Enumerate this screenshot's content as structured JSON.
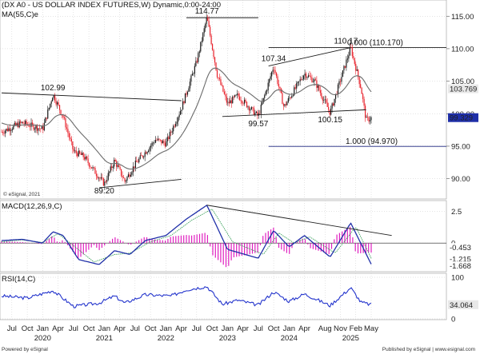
{
  "header": {
    "price_title": "(DX A0 - US DOLLAR INDEX FUTURES,W) Dynamic,0:00-24:00",
    "ma_label": "MA(55,C)e",
    "macd_label": "MACD(12,26,9,C)",
    "rsi_label": "RSI(14,C)",
    "copyright": "© eSignal, 2021",
    "footer_left": "Powered by eSignal",
    "footer_right": "Published by eSignal | www.esignal.com"
  },
  "colors": {
    "bull": "#1a1a1a",
    "bear": "#e8202a",
    "ma": "#6b6b6b",
    "macd_line": "#1f2fa8",
    "signal_line": "#3aa05a",
    "histogram": "#e020c0",
    "rsi_line": "#2233cc",
    "guide": "#1a237e",
    "grid": "#c8c8c8"
  },
  "chart_data": [
    {
      "type": "candlestick",
      "title": "(DX A0 - US DOLLAR INDEX FUTURES,W) Dynamic,0:00-24:00",
      "ylim": [
        87,
        117
      ],
      "y_ticks": [
        "90.00",
        "95.00",
        "100.00",
        "105.00",
        "110.00",
        "115.00"
      ],
      "x_ticks": [
        "Jul",
        "Oct",
        "Jan",
        "Apr",
        "Jul",
        "Oct",
        "Jan",
        "Apr",
        "Jul",
        "Oct",
        "Jan",
        "Apr",
        "Jul",
        "Oct",
        "Jan",
        "Apr",
        "Jul",
        "Oct",
        "Jan",
        "Apr",
        "Aug",
        "Nov",
        "Feb",
        "May"
      ],
      "x_years": [
        "2020",
        "2021",
        "2022",
        "2023",
        "2024",
        "2025"
      ],
      "path_points": [
        {
          "t": "2019-05",
          "v": 97.2
        },
        {
          "t": "2019-09",
          "v": 98.6
        },
        {
          "t": "2020-01",
          "v": 97.6
        },
        {
          "t": "2020-03",
          "v": 102.99
        },
        {
          "t": "2020-05",
          "v": 99.5
        },
        {
          "t": "2020-07",
          "v": 94.2
        },
        {
          "t": "2020-09",
          "v": 93.4
        },
        {
          "t": "2020-12",
          "v": 90.2
        },
        {
          "t": "2021-01",
          "v": 89.2
        },
        {
          "t": "2021-03",
          "v": 92.8
        },
        {
          "t": "2021-05",
          "v": 89.6
        },
        {
          "t": "2021-07",
          "v": 92.2
        },
        {
          "t": "2021-11",
          "v": 96.0
        },
        {
          "t": "2022-01",
          "v": 95.4
        },
        {
          "t": "2022-04",
          "v": 100.8
        },
        {
          "t": "2022-07",
          "v": 108.0
        },
        {
          "t": "2022-09",
          "v": 114.77
        },
        {
          "t": "2022-11",
          "v": 106.0
        },
        {
          "t": "2023-01",
          "v": 101.5
        },
        {
          "t": "2023-03",
          "v": 102.8
        },
        {
          "t": "2023-07",
          "v": 99.57
        },
        {
          "t": "2023-10",
          "v": 107.34
        },
        {
          "t": "2023-12",
          "v": 101.0
        },
        {
          "t": "2024-04",
          "v": 106.2
        },
        {
          "t": "2024-06",
          "v": 105.0
        },
        {
          "t": "2024-09",
          "v": 100.15
        },
        {
          "t": "2025-01",
          "v": 110.17
        },
        {
          "t": "2025-03",
          "v": 104.0
        },
        {
          "t": "2025-04",
          "v": 99.0
        },
        {
          "t": "2025-05",
          "v": 99.329
        }
      ],
      "moving_average": {
        "name": "MA(55,C)e",
        "last_value": "103.769"
      },
      "current_value": "99.329",
      "annotations": [
        {
          "text": "102.99",
          "t": "2020-03",
          "v": 102.99
        },
        {
          "text": "114.77",
          "t": "2022-09",
          "v": 114.77
        },
        {
          "text": "89.20",
          "t": "2021-01",
          "v": 89.2
        },
        {
          "text": "107.34",
          "t": "2023-10",
          "v": 107.34
        },
        {
          "text": "99.57",
          "t": "2023-07",
          "v": 99.57
        },
        {
          "text": "110.17",
          "t": "2025-01",
          "v": 110.17
        },
        {
          "text": "100.15",
          "t": "2024-09",
          "v": 100.15
        }
      ],
      "levels": [
        {
          "label": "0.000 (110.170)",
          "value": 110.17
        },
        {
          "label": "1.000 (94.970)",
          "value": 94.97
        }
      ],
      "grid": true
    },
    {
      "type": "line",
      "title": "MACD(12,26,9,C)",
      "ylim": [
        -2.2,
        3.3
      ],
      "y_ticks": [
        "2.5",
        "0"
      ],
      "last_values": [
        "-0.453",
        "-1.215",
        "-1.668"
      ],
      "series": [
        {
          "name": "MACD",
          "values": [
            {
              "t": "2019-05",
              "v": 0.2
            },
            {
              "t": "2019-09",
              "v": 0.3
            },
            {
              "t": "2020-01",
              "v": 0.0
            },
            {
              "t": "2020-03",
              "v": 0.9
            },
            {
              "t": "2020-05",
              "v": 0.6
            },
            {
              "t": "2020-08",
              "v": -1.3
            },
            {
              "t": "2020-12",
              "v": -1.7
            },
            {
              "t": "2021-03",
              "v": -0.6
            },
            {
              "t": "2021-06",
              "v": -0.9
            },
            {
              "t": "2021-09",
              "v": 0.2
            },
            {
              "t": "2022-01",
              "v": 0.6
            },
            {
              "t": "2022-05",
              "v": 1.9
            },
            {
              "t": "2022-09",
              "v": 3.0
            },
            {
              "t": "2023-01",
              "v": -0.5
            },
            {
              "t": "2023-07",
              "v": -1.2
            },
            {
              "t": "2023-10",
              "v": 1.0
            },
            {
              "t": "2024-01",
              "v": -0.3
            },
            {
              "t": "2024-04",
              "v": 0.6
            },
            {
              "t": "2024-09",
              "v": -1.1
            },
            {
              "t": "2025-01",
              "v": 1.6
            },
            {
              "t": "2025-05",
              "v": -1.67
            }
          ]
        },
        {
          "name": "Signal",
          "values": [
            {
              "t": "2019-05",
              "v": 0.1
            },
            {
              "t": "2019-09",
              "v": 0.25
            },
            {
              "t": "2020-01",
              "v": 0.05
            },
            {
              "t": "2020-04",
              "v": 0.75
            },
            {
              "t": "2020-07",
              "v": -0.2
            },
            {
              "t": "2020-11",
              "v": -1.5
            },
            {
              "t": "2021-03",
              "v": -0.9
            },
            {
              "t": "2021-06",
              "v": -0.8
            },
            {
              "t": "2021-10",
              "v": 0.1
            },
            {
              "t": "2022-02",
              "v": 0.6
            },
            {
              "t": "2022-06",
              "v": 1.8
            },
            {
              "t": "2022-10",
              "v": 2.7
            },
            {
              "t": "2023-02",
              "v": 0.1
            },
            {
              "t": "2023-08",
              "v": -0.9
            },
            {
              "t": "2023-11",
              "v": 0.8
            },
            {
              "t": "2024-02",
              "v": 0.0
            },
            {
              "t": "2024-05",
              "v": 0.5
            },
            {
              "t": "2024-10",
              "v": -0.8
            },
            {
              "t": "2025-02",
              "v": 1.3
            },
            {
              "t": "2025-05",
              "v": -1.2
            }
          ]
        }
      ],
      "trendline": [
        {
          "t": "2022-09",
          "v": 3.0
        },
        {
          "t": "2025-09",
          "v": 0.6
        }
      ]
    },
    {
      "type": "line",
      "title": "RSI(14,C)",
      "ylim": [
        0,
        100
      ],
      "y_ticks": [
        "100",
        "0"
      ],
      "last_value": "34.064",
      "series": [
        {
          "name": "RSI",
          "values": [
            {
              "t": "2019-05",
              "v": 55
            },
            {
              "t": "2019-10",
              "v": 50
            },
            {
              "t": "2020-03",
              "v": 68
            },
            {
              "t": "2020-07",
              "v": 30
            },
            {
              "t": "2020-12",
              "v": 38
            },
            {
              "t": "2021-03",
              "v": 55
            },
            {
              "t": "2021-05",
              "v": 38
            },
            {
              "t": "2021-09",
              "v": 58
            },
            {
              "t": "2022-02",
              "v": 55
            },
            {
              "t": "2022-05",
              "v": 70
            },
            {
              "t": "2022-09",
              "v": 78
            },
            {
              "t": "2022-12",
              "v": 35
            },
            {
              "t": "2023-03",
              "v": 45
            },
            {
              "t": "2023-07",
              "v": 33
            },
            {
              "t": "2023-10",
              "v": 65
            },
            {
              "t": "2024-01",
              "v": 42
            },
            {
              "t": "2024-04",
              "v": 60
            },
            {
              "t": "2024-09",
              "v": 32
            },
            {
              "t": "2025-01",
              "v": 75
            },
            {
              "t": "2025-03",
              "v": 40
            },
            {
              "t": "2025-05",
              "v": 34.064
            }
          ]
        }
      ]
    }
  ]
}
